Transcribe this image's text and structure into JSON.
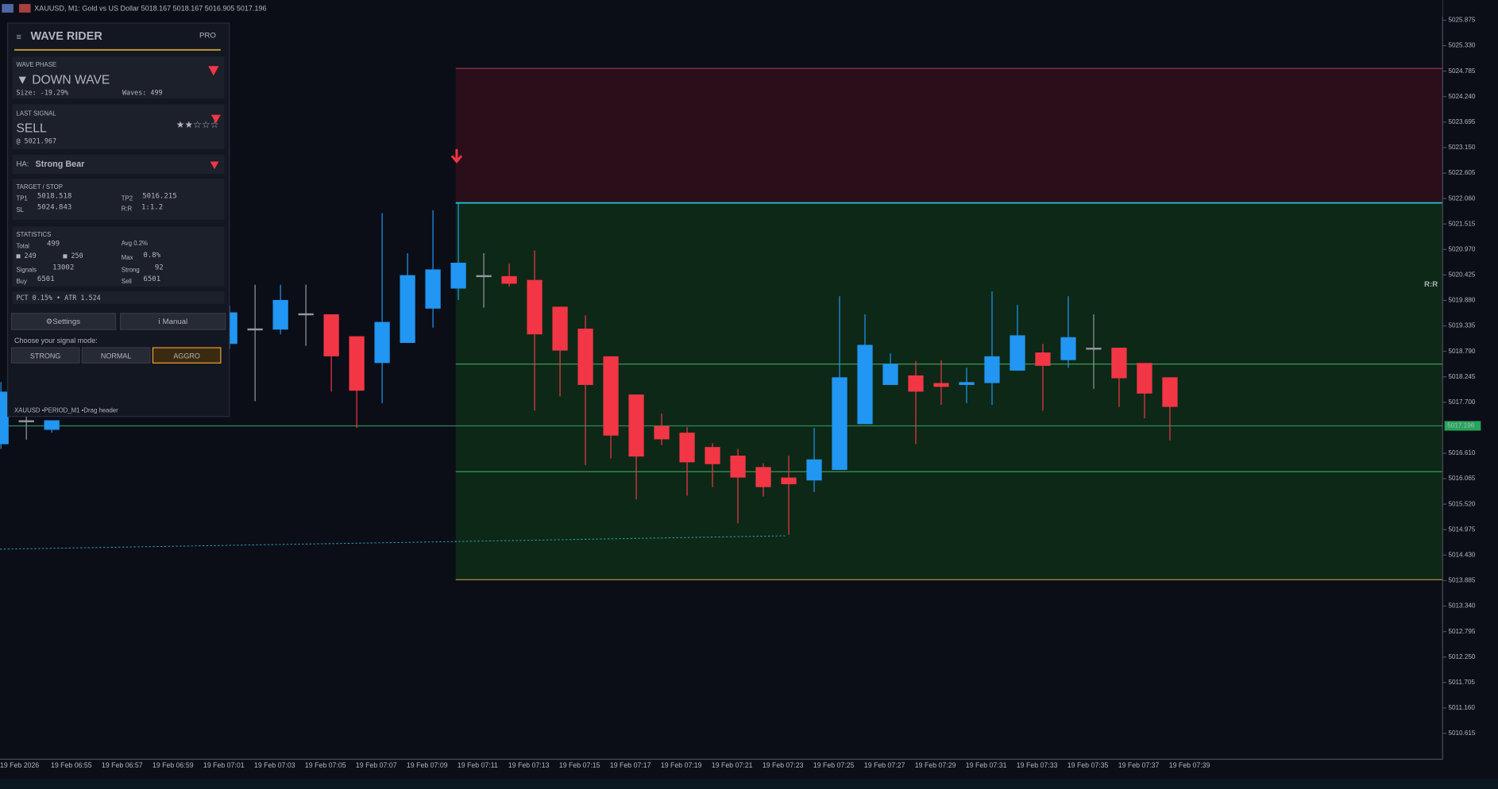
{
  "window": {
    "title": "XAUUSD, M1:  Gold vs US Dollar  5018.167 5018.167 5016.905 5017.196"
  },
  "panel": {
    "title": "WAVE RIDER",
    "badge": "PRO",
    "wave_phase": {
      "label": "WAVE PHASE",
      "value": "▼ DOWN WAVE",
      "size": "Size: -19.29%",
      "waves": "Waves: 499"
    },
    "last_signal": {
      "label": "LAST SIGNAL",
      "value": "SELL",
      "price": "@ 5021.967",
      "stars": "★★☆☆☆"
    },
    "ha": {
      "label": "HA:",
      "value": "Strong Bear"
    },
    "target_stop": {
      "label": "TARGET / STOP",
      "tp1_label": "TP1",
      "tp1": 5018.518,
      "tp2_label": "TP2",
      "tp2": 5016.215,
      "sl_label": "SL",
      "sl": 5024.843,
      "rr_label": "R:R",
      "rr": "1:1.2"
    },
    "statistics": {
      "label": "STATISTICS",
      "total_label": "Total",
      "total": 499,
      "bull": "■ 249",
      "bear": "■ 250",
      "signals_label": "Signals",
      "signals": 13002,
      "buy_label": "Buy",
      "buy": 6501,
      "avg": "Avg 0.2%",
      "max_label": "Max",
      "max": "0.8%",
      "strong_label": "Strong",
      "strong": 92,
      "sell_label": "Sell",
      "sell": 6501
    },
    "info": "PCT 0.15%  • ATR 1.524",
    "buttons": [
      "⚙Settings",
      "ⅰ Manual"
    ],
    "mode_prompt": "Choose your signal mode:",
    "modes": [
      "STRONG",
      "NORMAL",
      "AGGRO"
    ],
    "active_mode": 2,
    "footer": "XAUUSD •PERIOD_M1 •Drag header"
  },
  "chart_data": {
    "type": "candlestick",
    "up_color": "#2196f3",
    "down_color": "#f23645",
    "categories": [
      "19 Feb 2026",
      null,
      "19 Feb 06:55",
      null,
      "19 Feb 06:57",
      null,
      "19 Feb 06:59",
      null,
      "19 Feb 07:01",
      null,
      "19 Feb 07:03",
      null,
      "19 Feb 07:05",
      null,
      "19 Feb 07:07",
      null,
      "19 Feb 07:09",
      null,
      "19 Feb 07:11",
      null,
      "19 Feb 07:13",
      null,
      "19 Feb 07:15",
      null,
      "19 Feb 07:17",
      null,
      "19 Feb 07:19",
      null,
      "19 Feb 07:21",
      null,
      "19 Feb 07:23",
      null,
      "19 Feb 07:25",
      null,
      "19 Feb 07:27",
      null,
      "19 Feb 07:29",
      null,
      "19 Feb 07:31",
      null,
      "19 Feb 07:33",
      null,
      "19 Feb 07:35",
      null,
      "19 Feb 07:37",
      null,
      "19 Feb 07:39"
    ],
    "open": [
      5016.804,
      5017.315,
      5017.111,
      null,
      null,
      null,
      null,
      null,
      null,
      5018.95,
      5019.28,
      5019.256,
      5019.603,
      5019.583,
      5019.113,
      5018.541,
      5018.97,
      5019.705,
      5020.134,
      5020.42,
      5020.4,
      5020.318,
      5019.746,
      5019.276,
      5018.684,
      5017.867,
      5017.193,
      5017.05,
      5016.743,
      5016.559,
      5016.314,
      5016.09,
      5016.028,
      5016.253,
      5017.234,
      5018.071,
      5018.275,
      5018.112,
      5018.071,
      5018.112,
      5018.378,
      5018.766,
      5018.602,
      5018.868,
      5018.868,
      5018.541,
      5018.235
    ],
    "high": [
      5018.132,
      5017.52,
      5017.315,
      null,
      null,
      null,
      null,
      null,
      null,
      5019.767,
      5020.216,
      5020.216,
      5020.216,
      5019.583,
      5019.113,
      5021.748,
      5020.89,
      5021.81,
      5021.953,
      5020.89,
      5020.666,
      5020.952,
      5019.746,
      5019.562,
      5018.684,
      5017.867,
      5017.458,
      5017.172,
      5016.825,
      5016.702,
      5016.396,
      5016.559,
      5017.152,
      5019.971,
      5019.583,
      5018.745,
      5018.582,
      5018.602,
      5018.439,
      5020.073,
      5019.787,
      5018.95,
      5019.971,
      5019.583,
      5018.868,
      5018.541,
      5018.235
    ],
    "low": [
      5016.702,
      5016.9,
      5017.05,
      null,
      null,
      null,
      null,
      null,
      null,
      5018.847,
      5017.724,
      5019.154,
      5018.909,
      5017.928,
      5017.152,
      5017.683,
      5018.97,
      5019.297,
      5019.889,
      5019.726,
      5020.175,
      5017.52,
      5017.826,
      5016.355,
      5016.498,
      5015.62,
      5016.784,
      5015.701,
      5015.885,
      5015.109,
      5015.681,
      5014.864,
      5015.783,
      5016.253,
      5017.234,
      5018.071,
      5016.804,
      5017.642,
      5017.683,
      5017.642,
      5018.378,
      5017.52,
      5018.439,
      5017.989,
      5017.601,
      5017.356,
      5016.886
    ],
    "close": [
      5017.928,
      5017.31,
      5017.315,
      null,
      null,
      null,
      null,
      null,
      null,
      5019.624,
      5019.26,
      5019.889,
      5019.59,
      5018.684,
      5017.949,
      5019.419,
      5020.42,
      5020.543,
      5020.686,
      5020.41,
      5020.237,
      5019.154,
      5018.807,
      5018.071,
      5016.988,
      5016.539,
      5016.907,
      5016.416,
      5016.376,
      5016.09,
      5015.885,
      5015.947,
      5016.478,
      5018.235,
      5018.929,
      5018.521,
      5017.928,
      5018.03,
      5018.132,
      5018.684,
      5019.133,
      5018.48,
      5019.093,
      5018.86,
      5018.214,
      5017.887,
      5017.601
    ],
    "entry": 5021.967,
    "zone_bottom": 5013.904,
    "current_price": 5017.196,
    "rr_marker": "R:R",
    "ylim": [
      5010.063,
      5026.304
    ],
    "yticks": [
      5025.875,
      {
        "value": 5025.33,
        "label": "5025.330"
      },
      5024.785,
      {
        "value": 5024.24,
        "label": "5024.240"
      },
      5023.695,
      {
        "value": 5023.15,
        "label": "5023.150"
      },
      5022.605,
      {
        "value": 5022.06,
        "label": "5022.060"
      },
      5021.515,
      {
        "value": 5020.97,
        "label": "5020.970"
      },
      5020.425,
      {
        "value": 5019.88,
        "label": "5019.880"
      },
      5019.335,
      {
        "value": 5018.79,
        "label": "5018.790"
      },
      5018.245,
      {
        "value": 5017.7,
        "label": "5017.700"
      },
      {
        "value": 5016.61,
        "label": "5016.610"
      },
      5016.065,
      {
        "value": 5015.52,
        "label": "5015.520"
      },
      5014.975,
      {
        "value": 5014.43,
        "label": "5014.430"
      },
      5013.885,
      {
        "value": 5013.34,
        "label": "5013.340"
      },
      5012.795,
      {
        "value": 5012.25,
        "label": "5012.250"
      },
      5011.705,
      {
        "value": 5011.16,
        "label": "5011.160"
      },
      5010.615
    ]
  }
}
